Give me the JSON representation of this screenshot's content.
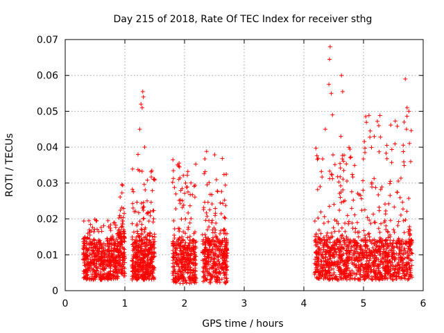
{
  "chart_data": {
    "type": "scatter",
    "title": "Day 215 of 2018, Rate Of TEC Index for receiver sthg",
    "xlabel": "GPS time / hours",
    "ylabel": "ROTI / TECUs",
    "xlim": [
      0,
      6
    ],
    "ylim": [
      0,
      0.07
    ],
    "xticks": [
      "0",
      "1",
      "2",
      "3",
      "4",
      "5",
      "6"
    ],
    "yticks": [
      "0",
      "0.01",
      "0.02",
      "0.03",
      "0.04",
      "0.05",
      "0.06",
      "0.07"
    ],
    "xtick_values": [
      0,
      1,
      2,
      3,
      4,
      5,
      6
    ],
    "ytick_values": [
      0,
      0.01,
      0.02,
      0.03,
      0.04,
      0.05,
      0.06,
      0.07
    ],
    "grid": true,
    "marker": "+",
    "color": "#ff0000",
    "clusters": [
      {
        "x": [
          0.3,
          0.9
        ],
        "base": [
          0.003,
          0.013
        ],
        "peak": 0.02,
        "n": 520
      },
      {
        "x": [
          0.9,
          1.0
        ],
        "base": [
          0.004,
          0.016
        ],
        "peak": 0.03,
        "n": 110
      },
      {
        "x": [
          1.12,
          1.5
        ],
        "base": [
          0.003,
          0.014
        ],
        "peak": 0.034,
        "n": 420
      },
      {
        "x": [
          1.8,
          2.2
        ],
        "base": [
          0.002,
          0.014
        ],
        "peak": 0.037,
        "n": 380
      },
      {
        "x": [
          2.3,
          2.72
        ],
        "base": [
          0.002,
          0.014
        ],
        "peak": 0.039,
        "n": 380
      },
      {
        "x": [
          4.18,
          5.0
        ],
        "base": [
          0.003,
          0.014
        ],
        "peak": 0.04,
        "n": 620
      },
      {
        "x": [
          5.0,
          5.82
        ],
        "base": [
          0.003,
          0.014
        ],
        "peak": 0.05,
        "n": 620
      }
    ],
    "outliers": [
      {
        "x": 1.25,
        "y": 0.045
      },
      {
        "x": 1.27,
        "y": 0.052
      },
      {
        "x": 1.3,
        "y": 0.0555
      },
      {
        "x": 1.31,
        "y": 0.054
      },
      {
        "x": 1.29,
        "y": 0.051
      },
      {
        "x": 1.33,
        "y": 0.04
      },
      {
        "x": 1.22,
        "y": 0.038
      },
      {
        "x": 4.44,
        "y": 0.068
      },
      {
        "x": 4.43,
        "y": 0.0645
      },
      {
        "x": 4.42,
        "y": 0.0575
      },
      {
        "x": 4.46,
        "y": 0.055
      },
      {
        "x": 4.48,
        "y": 0.049
      },
      {
        "x": 4.63,
        "y": 0.06
      },
      {
        "x": 4.65,
        "y": 0.0555
      },
      {
        "x": 4.62,
        "y": 0.043
      },
      {
        "x": 4.36,
        "y": 0.045
      },
      {
        "x": 5.7,
        "y": 0.059
      },
      {
        "x": 5.73,
        "y": 0.051
      },
      {
        "x": 5.76,
        "y": 0.05
      },
      {
        "x": 5.68,
        "y": 0.047
      },
      {
        "x": 5.72,
        "y": 0.045
      },
      {
        "x": 5.79,
        "y": 0.036
      }
    ]
  }
}
